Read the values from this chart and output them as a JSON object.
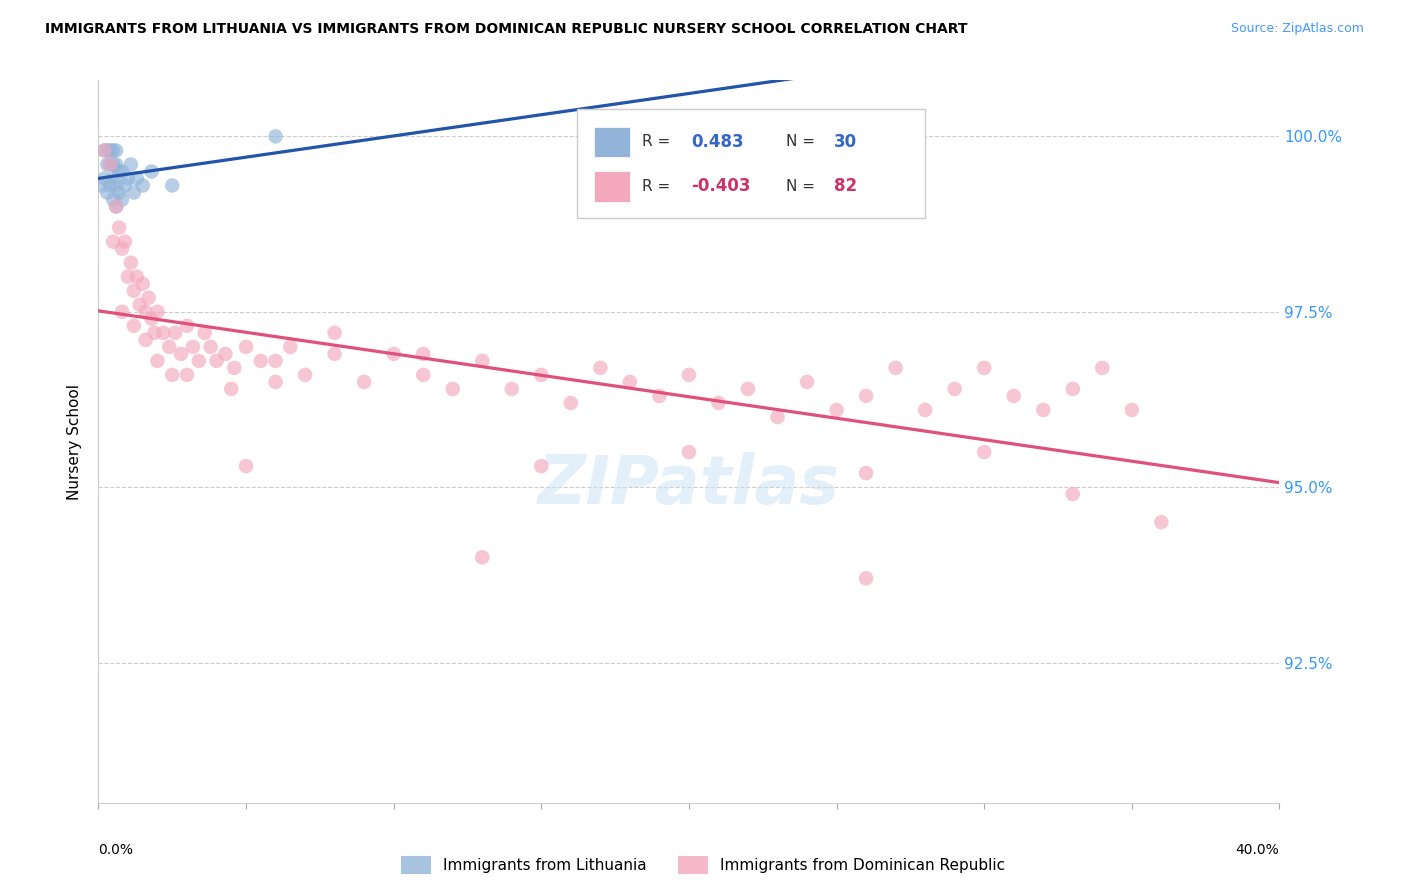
{
  "title": "IMMIGRANTS FROM LITHUANIA VS IMMIGRANTS FROM DOMINICAN REPUBLIC NURSERY SCHOOL CORRELATION CHART",
  "source": "Source: ZipAtlas.com",
  "ylabel": "Nursery School",
  "label_blue": "Immigrants from Lithuania",
  "label_pink": "Immigrants from Dominican Republic",
  "blue_r": "0.483",
  "blue_n": "30",
  "pink_r": "-0.403",
  "pink_n": "82",
  "xlim": [
    0.0,
    0.4
  ],
  "ylim": [
    0.905,
    1.008
  ],
  "yticks": [
    0.925,
    0.95,
    0.975,
    1.0
  ],
  "ytick_labels": [
    "92.5%",
    "95.0%",
    "97.5%",
    "100.0%"
  ],
  "blue_scatter_color": "#92b4d9",
  "blue_line_color": "#2255aa",
  "pink_scatter_color": "#f4a8be",
  "pink_line_color": "#e0507a",
  "blue_legend_color": "#3366cc",
  "pink_legend_color": "#cc3366",
  "blue_x": [
    0.001,
    0.002,
    0.002,
    0.003,
    0.003,
    0.003,
    0.004,
    0.004,
    0.004,
    0.005,
    0.005,
    0.005,
    0.005,
    0.006,
    0.006,
    0.006,
    0.006,
    0.007,
    0.007,
    0.008,
    0.008,
    0.009,
    0.01,
    0.011,
    0.012,
    0.013,
    0.015,
    0.018,
    0.025,
    0.06
  ],
  "blue_y": [
    0.993,
    0.994,
    0.998,
    0.992,
    0.996,
    0.998,
    0.993,
    0.996,
    0.998,
    0.991,
    0.994,
    0.996,
    0.998,
    0.99,
    0.993,
    0.996,
    0.998,
    0.992,
    0.995,
    0.991,
    0.995,
    0.993,
    0.994,
    0.996,
    0.992,
    0.994,
    0.993,
    0.995,
    0.993,
    1.0
  ],
  "pink_x": [
    0.002,
    0.004,
    0.005,
    0.006,
    0.007,
    0.008,
    0.009,
    0.01,
    0.011,
    0.012,
    0.013,
    0.014,
    0.015,
    0.016,
    0.017,
    0.018,
    0.019,
    0.02,
    0.022,
    0.024,
    0.026,
    0.028,
    0.03,
    0.032,
    0.034,
    0.036,
    0.038,
    0.04,
    0.043,
    0.046,
    0.05,
    0.055,
    0.06,
    0.065,
    0.07,
    0.08,
    0.09,
    0.1,
    0.11,
    0.12,
    0.13,
    0.14,
    0.15,
    0.16,
    0.17,
    0.18,
    0.19,
    0.2,
    0.21,
    0.22,
    0.23,
    0.24,
    0.25,
    0.26,
    0.27,
    0.28,
    0.29,
    0.3,
    0.31,
    0.32,
    0.33,
    0.34,
    0.35,
    0.008,
    0.012,
    0.016,
    0.02,
    0.03,
    0.045,
    0.06,
    0.08,
    0.11,
    0.15,
    0.2,
    0.26,
    0.3,
    0.33,
    0.025,
    0.05,
    0.13,
    0.26,
    0.36
  ],
  "pink_y": [
    0.998,
    0.996,
    0.985,
    0.99,
    0.987,
    0.984,
    0.985,
    0.98,
    0.982,
    0.978,
    0.98,
    0.976,
    0.979,
    0.975,
    0.977,
    0.974,
    0.972,
    0.975,
    0.972,
    0.97,
    0.972,
    0.969,
    0.973,
    0.97,
    0.968,
    0.972,
    0.97,
    0.968,
    0.969,
    0.967,
    0.97,
    0.968,
    0.965,
    0.97,
    0.966,
    0.969,
    0.965,
    0.969,
    0.966,
    0.964,
    0.968,
    0.964,
    0.966,
    0.962,
    0.967,
    0.965,
    0.963,
    0.966,
    0.962,
    0.964,
    0.96,
    0.965,
    0.961,
    0.963,
    0.967,
    0.961,
    0.964,
    0.967,
    0.963,
    0.961,
    0.964,
    0.967,
    0.961,
    0.975,
    0.973,
    0.971,
    0.968,
    0.966,
    0.964,
    0.968,
    0.972,
    0.969,
    0.953,
    0.955,
    0.952,
    0.955,
    0.949,
    0.966,
    0.953,
    0.94,
    0.937,
    0.945
  ]
}
